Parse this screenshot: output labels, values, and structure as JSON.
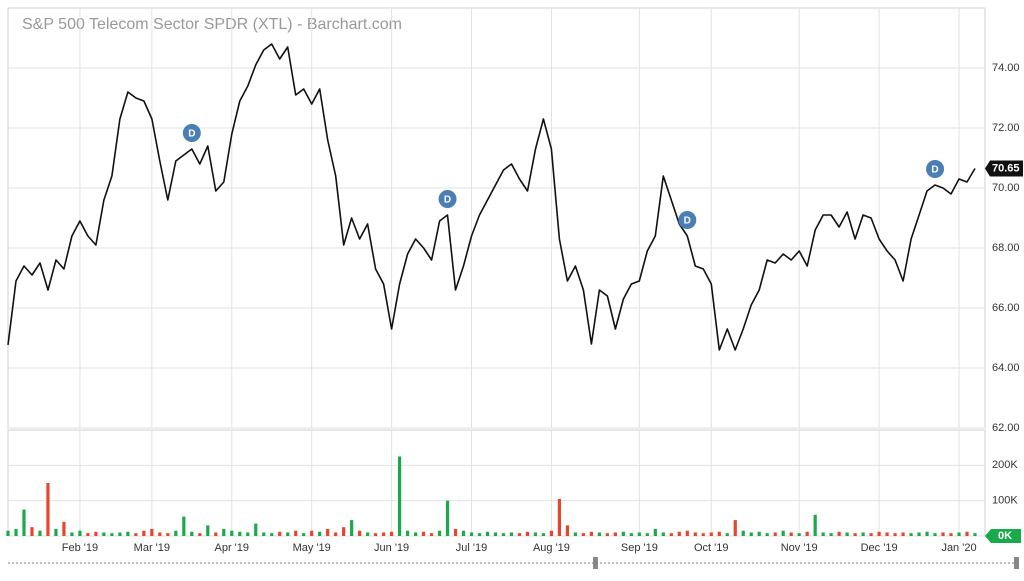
{
  "chart_data": [
    {
      "type": "line",
      "title": "S&P 500 Telecom Sector SPDR (XTL) - Barchart.com",
      "color": "#111111",
      "grid": true,
      "categories": [
        null,
        null,
        null,
        null,
        null,
        null,
        null,
        null,
        null,
        "Feb '19",
        null,
        null,
        null,
        null,
        null,
        null,
        null,
        null,
        "Mar '19",
        null,
        null,
        null,
        null,
        null,
        null,
        null,
        null,
        null,
        "Apr '19",
        null,
        null,
        null,
        null,
        null,
        null,
        null,
        null,
        null,
        "May '19",
        null,
        null,
        null,
        null,
        null,
        null,
        null,
        null,
        null,
        "Jun '19",
        null,
        null,
        null,
        null,
        null,
        null,
        null,
        null,
        null,
        "Jul '19",
        null,
        null,
        null,
        null,
        null,
        null,
        null,
        null,
        null,
        "Aug '19",
        null,
        null,
        null,
        null,
        null,
        null,
        null,
        null,
        null,
        null,
        "Sep '19",
        null,
        null,
        null,
        null,
        null,
        null,
        null,
        null,
        "Oct '19",
        null,
        null,
        null,
        null,
        null,
        null,
        null,
        null,
        null,
        null,
        "Nov '19",
        null,
        null,
        null,
        null,
        null,
        null,
        null,
        null,
        null,
        "Dec '19",
        null,
        null,
        null,
        null,
        null,
        null,
        null,
        null,
        null,
        "Jan '20",
        null,
        null
      ],
      "values": [
        64.77,
        66.9,
        67.4,
        67.1,
        67.5,
        66.6,
        67.6,
        67.3,
        68.4,
        68.9,
        68.4,
        68.1,
        69.6,
        70.4,
        72.3,
        73.2,
        73.0,
        72.9,
        72.3,
        70.9,
        69.6,
        70.9,
        71.1,
        71.3,
        70.8,
        71.4,
        69.9,
        70.2,
        71.8,
        72.9,
        73.4,
        74.1,
        74.6,
        74.8,
        74.3,
        74.7,
        73.1,
        73.3,
        72.8,
        73.3,
        71.6,
        70.4,
        68.1,
        69.0,
        68.3,
        68.8,
        67.3,
        66.8,
        65.3,
        66.8,
        67.8,
        68.3,
        68.0,
        67.6,
        68.9,
        69.1,
        66.6,
        67.4,
        68.4,
        69.1,
        69.6,
        70.1,
        70.6,
        70.8,
        70.3,
        69.9,
        71.3,
        72.3,
        71.3,
        68.3,
        66.9,
        67.4,
        66.6,
        64.8,
        66.6,
        66.4,
        65.3,
        66.3,
        66.8,
        66.9,
        67.9,
        68.4,
        70.4,
        69.6,
        68.8,
        68.4,
        67.4,
        67.3,
        66.8,
        64.6,
        65.3,
        64.6,
        65.3,
        66.1,
        66.6,
        67.6,
        67.5,
        67.8,
        67.6,
        67.9,
        67.4,
        68.6,
        69.1,
        69.1,
        68.7,
        69.2,
        68.3,
        69.1,
        69.0,
        68.3,
        67.9,
        67.6,
        66.9,
        68.3,
        69.1,
        69.9,
        70.1,
        70.0,
        69.8,
        70.3,
        70.2,
        70.65
      ],
      "ylim": [
        62,
        76
      ],
      "yticks": [
        {
          "value": 62,
          "label": "62.00"
        },
        {
          "value": 64,
          "label": "64.00"
        },
        {
          "value": 66,
          "label": "66.00"
        },
        {
          "value": 68,
          "label": "68.00"
        },
        {
          "value": 70,
          "label": "70.00"
        },
        {
          "value": 72,
          "label": "72.00"
        },
        {
          "value": 74,
          "label": "74.00"
        }
      ],
      "dividend_markers": [
        {
          "label": "D",
          "point": 23
        },
        {
          "label": "D",
          "point": 55
        },
        {
          "label": "D",
          "point": 85
        },
        {
          "label": "D",
          "point": 116
        }
      ]
    },
    {
      "type": "bar",
      "up_color": "#1aaa4a",
      "down_color": "#e8452c",
      "grid": true,
      "values": [
        15000,
        20000,
        75000,
        25000,
        15000,
        150000,
        20000,
        40000,
        10000,
        15000,
        8000,
        12000,
        10000,
        8000,
        10000,
        12000,
        8000,
        15000,
        20000,
        10000,
        8000,
        15000,
        55000,
        12000,
        8000,
        30000,
        10000,
        20000,
        15000,
        12000,
        10000,
        35000,
        10000,
        8000,
        12000,
        10000,
        15000,
        8000,
        15000,
        12000,
        20000,
        10000,
        25000,
        45000,
        15000,
        10000,
        8000,
        10000,
        12000,
        225000,
        15000,
        10000,
        12000,
        8000,
        15000,
        100000,
        20000,
        15000,
        10000,
        8000,
        12000,
        10000,
        8000,
        10000,
        8000,
        12000,
        10000,
        8000,
        15000,
        105000,
        30000,
        10000,
        8000,
        12000,
        10000,
        8000,
        10000,
        12000,
        8000,
        10000,
        8000,
        20000,
        10000,
        8000,
        12000,
        15000,
        10000,
        8000,
        10000,
        12000,
        8000,
        45000,
        15000,
        10000,
        12000,
        8000,
        10000,
        15000,
        10000,
        8000,
        12000,
        60000,
        10000,
        8000,
        12000,
        10000,
        8000,
        10000,
        8000,
        12000,
        10000,
        8000,
        10000,
        8000,
        10000,
        12000,
        8000,
        10000,
        8000,
        10000,
        12000,
        8000
      ],
      "ylim": [
        0,
        300000
      ],
      "yticks": [
        {
          "value": 0,
          "label": "0K"
        },
        {
          "value": 100000,
          "label": "100K"
        },
        {
          "value": 200000,
          "label": "200K"
        }
      ]
    }
  ]
}
